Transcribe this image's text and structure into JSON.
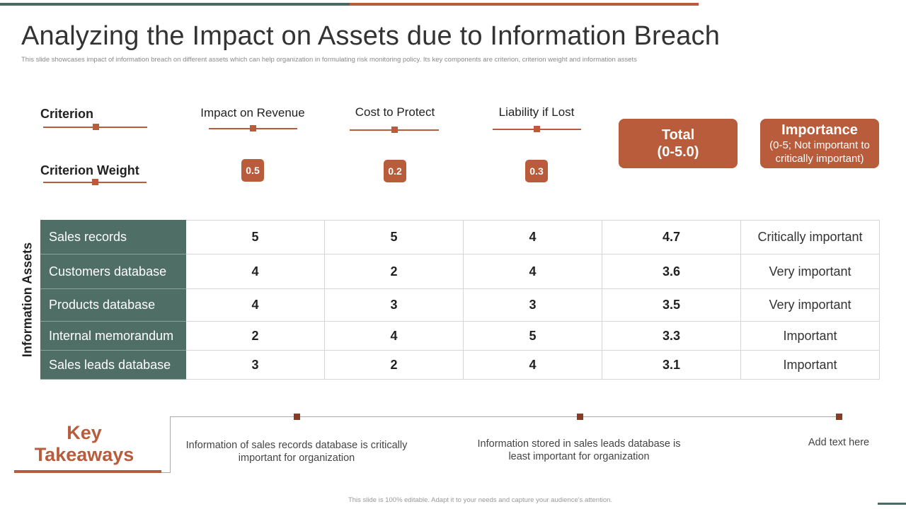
{
  "header": {
    "title": "Analyzing the Impact on Assets due to Information Breach",
    "subtitle": "This slide showcases impact of information breach on different assets which can help organization in formulating risk monitoring policy. Its key components are criterion, criterion weight and information assets"
  },
  "criteria": {
    "criterion_label": "Criterion",
    "weight_label_bold": "Criterion",
    "weight_label_normal": "Weight",
    "columns": [
      {
        "label": "Impact on Revenue",
        "weight": "0.5"
      },
      {
        "label": "Cost to Protect",
        "weight": "0.2"
      },
      {
        "label": "Liability if Lost",
        "weight": "0.3"
      }
    ],
    "total": {
      "main": "Total",
      "sub": "(0-5.0)"
    },
    "importance": {
      "main": "Importance",
      "sub": "(0-5; Not important to critically important)"
    }
  },
  "side_label": "Information Assets",
  "assets": [
    {
      "name": "Sales records",
      "revenue": "5",
      "cost": "5",
      "liability": "4",
      "total": "4.7",
      "importance": "Critically important"
    },
    {
      "name": "Customers database",
      "revenue": "4",
      "cost": "2",
      "liability": "4",
      "total": "3.6",
      "importance": "Very important"
    },
    {
      "name": "Products database",
      "revenue": "4",
      "cost": "3",
      "liability": "3",
      "total": "3.5",
      "importance": "Very important"
    },
    {
      "name": "Internal memorandum",
      "revenue": "2",
      "cost": "4",
      "liability": "5",
      "total": "3.3",
      "importance": "Important"
    },
    {
      "name": "Sales leads database",
      "revenue": "3",
      "cost": "2",
      "liability": "4",
      "total": "3.1",
      "importance": "Important"
    }
  ],
  "key_takeaways": {
    "title_line1": "Key",
    "title_line2": "Takeaways",
    "items": [
      "Information of sales records database is critically important for organization",
      "Information stored in sales leads database is least important for organization",
      "Add text here"
    ]
  },
  "footer": "This slide is 100% editable. Adapt it to your needs and capture your audience's attention.",
  "colors": {
    "accent": "#b85c3b",
    "teal": "#4e6e66"
  }
}
